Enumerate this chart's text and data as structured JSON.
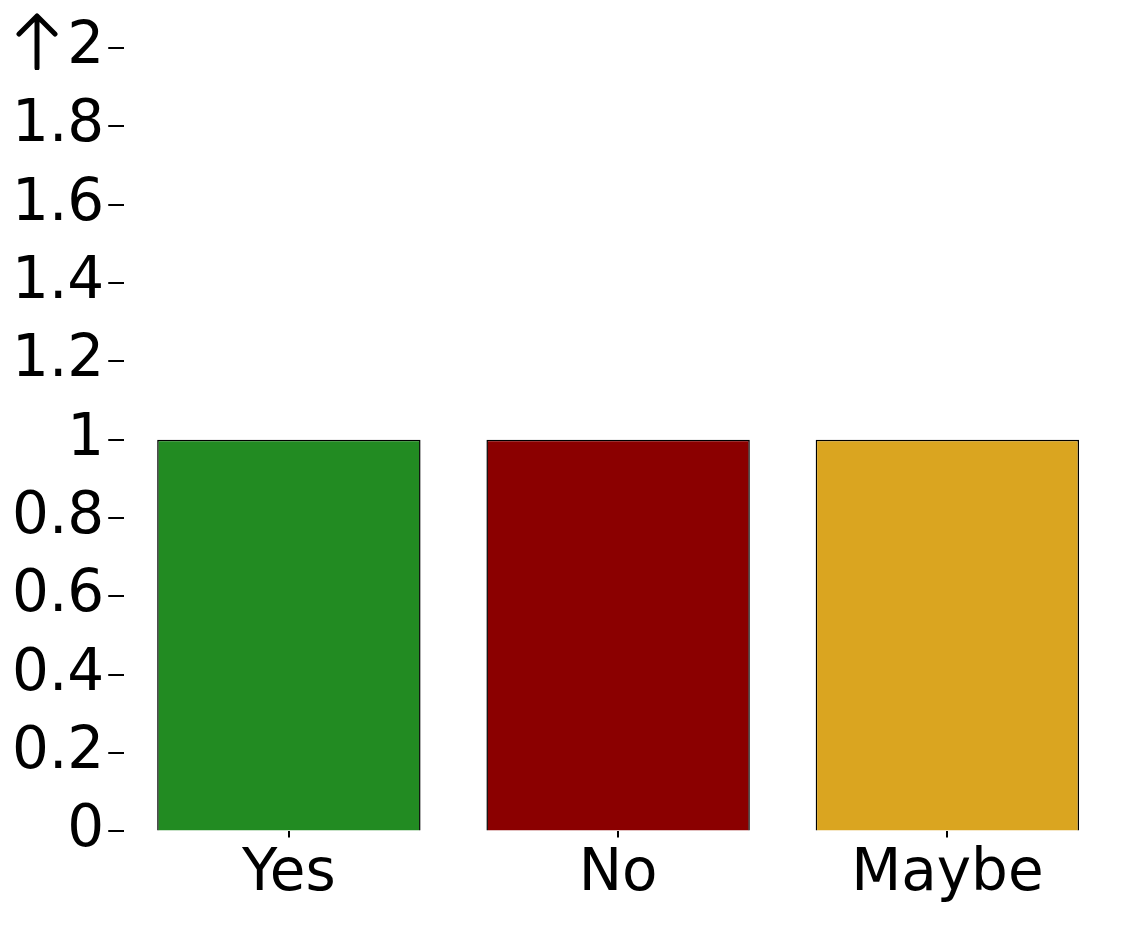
{
  "chart_data": {
    "type": "bar",
    "categories": [
      "Yes",
      "No",
      "Maybe"
    ],
    "values": [
      1,
      1,
      1
    ],
    "colors": [
      "#228b22",
      "#8b0000",
      "#daa520"
    ],
    "ylim": [
      0,
      2
    ],
    "yticks": [
      0,
      0.2,
      0.4,
      0.6,
      0.8,
      1,
      1.2,
      1.4,
      1.6,
      1.8,
      2
    ],
    "grid": false,
    "legend": false
  }
}
